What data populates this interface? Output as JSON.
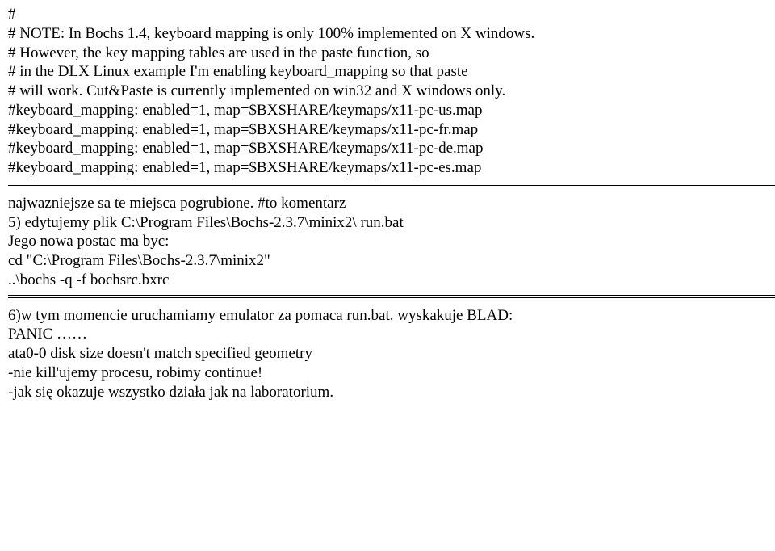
{
  "block1": {
    "l1": "#",
    "l2": "# NOTE: In Bochs 1.4, keyboard mapping is only 100% implemented on X windows.",
    "l3": "# However, the key mapping tables are used in the paste function, so",
    "l4": "# in the DLX Linux example I'm enabling keyboard_mapping so that paste",
    "l5": "# will work. Cut&Paste is currently implemented on win32 and X windows only.",
    "blank1": " ",
    "l6": "#keyboard_mapping: enabled=1, map=$BXSHARE/keymaps/x11-pc-us.map",
    "l7": "#keyboard_mapping: enabled=1, map=$BXSHARE/keymaps/x11-pc-fr.map",
    "l8": "#keyboard_mapping: enabled=1, map=$BXSHARE/keymaps/x11-pc-de.map",
    "l9": "#keyboard_mapping: enabled=1, map=$BXSHARE/keymaps/x11-pc-es.map"
  },
  "block2": {
    "l1": "najwazniejsze sa te miejsca pogrubione. #to komentarz",
    "blank1": " ",
    "l2": "5) edytujemy plik C:\\Program Files\\Bochs-2.3.7\\minix2\\ run.bat",
    "l3": "Jego nowa postac ma byc:",
    "l4": "cd \"C:\\Program Files\\Bochs-2.3.7\\minix2\"",
    "l5": "..\\bochs -q -f bochsrc.bxrc"
  },
  "block3": {
    "l1": "6)w tym momencie uruchamiamy emulator za pomaca run.bat. wyskakuje BLAD:",
    "l2": "PANIC ……",
    "l3": "ata0-0 disk size doesn't match specified geometry",
    "l4": "-nie kill'ujemy procesu, robimy continue!",
    "l5": "-jak się okazuje wszystko działa jak na laboratorium."
  }
}
